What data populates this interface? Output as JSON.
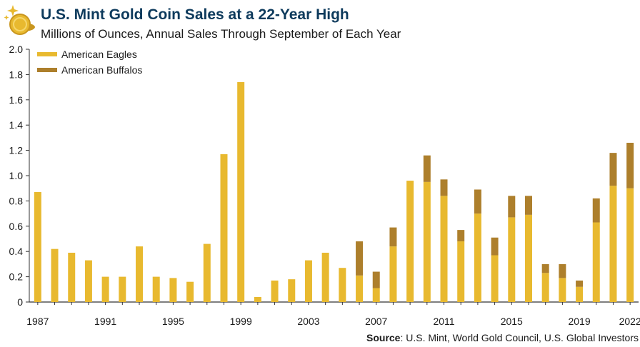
{
  "header": {
    "title": "U.S. Mint Gold Coin Sales at a 22-Year High",
    "subtitle": "Millions of Ounces, Annual Sales Through September of Each Year"
  },
  "logo": {
    "icon": "gold-coins-logo-icon"
  },
  "source": {
    "label": "Source",
    "text": ": U.S. Mint, World Gold Council, U.S. Global Investors"
  },
  "colors": {
    "eagles": "#e8b92f",
    "buffalos": "#ad7f2c",
    "title": "#0d3a5c"
  },
  "chart_data": {
    "type": "bar",
    "stacked": true,
    "title": "U.S. Mint Gold Coin Sales at a 22-Year High",
    "subtitle": "Millions of Ounces, Annual Sales Through September of Each Year",
    "xlabel": "",
    "ylabel": "",
    "ylim": [
      0,
      2.0
    ],
    "yticks": [
      "0",
      "0.2",
      "0.4",
      "0.6",
      "0.8",
      "1.0",
      "1.2",
      "1.4",
      "1.6",
      "1.8",
      "2.0"
    ],
    "grid": false,
    "legend_position": "top-left",
    "categories": [
      "1987",
      "1988",
      "1989",
      "1990",
      "1991",
      "1992",
      "1993",
      "1994",
      "1995",
      "1996",
      "1997",
      "1998",
      "1999",
      "2000",
      "2001",
      "2002",
      "2003",
      "2004",
      "2005",
      "2006",
      "2007",
      "2008",
      "2009",
      "2010",
      "2011",
      "2012",
      "2013",
      "2014",
      "2015",
      "2016",
      "2017",
      "2018",
      "2019",
      "2020",
      "2021",
      "2022"
    ],
    "xtick_labels": [
      "1987",
      "1991",
      "1995",
      "1999",
      "2003",
      "2007",
      "2011",
      "2015",
      "2019",
      "2022"
    ],
    "series": [
      {
        "name": "American Eagles",
        "color": "#e8b92f",
        "values": [
          0.87,
          0.42,
          0.39,
          0.33,
          0.2,
          0.2,
          0.44,
          0.2,
          0.19,
          0.16,
          0.46,
          1.17,
          1.74,
          0.04,
          0.17,
          0.18,
          0.33,
          0.39,
          0.27,
          0.21,
          0.11,
          0.44,
          0.96,
          0.95,
          0.84,
          0.48,
          0.7,
          0.37,
          0.67,
          0.69,
          0.23,
          0.19,
          0.12,
          0.63,
          0.92,
          0.9
        ]
      },
      {
        "name": "American Buffalos",
        "color": "#ad7f2c",
        "values": [
          0,
          0,
          0,
          0,
          0,
          0,
          0,
          0,
          0,
          0,
          0,
          0,
          0,
          0,
          0,
          0,
          0,
          0,
          0,
          0.27,
          0.13,
          0.15,
          0,
          0.21,
          0.13,
          0.09,
          0.19,
          0.14,
          0.17,
          0.15,
          0.07,
          0.11,
          0.05,
          0.19,
          0.26,
          0.36
        ]
      }
    ]
  }
}
